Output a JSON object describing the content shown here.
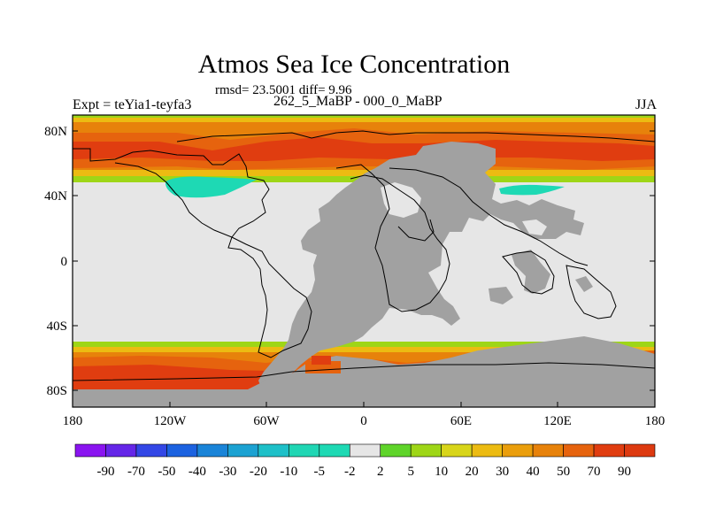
{
  "title": "Atmos Sea Ice Concentration",
  "stats": "rmsd= 23.5001 diff= 9.96",
  "experiment": "Expt = teYia1-teyfa3",
  "period": "262_5_MaBP - 000_0_MaBP",
  "season": "JJA",
  "colors": {
    "land": "#a1a1a1",
    "zero": "#e6e6e6",
    "pos5": "#5fd42a",
    "pos10": "#9ed617",
    "pos20": "#d8d51a",
    "pos30": "#ecbb12",
    "pos40": "#ea9e0c",
    "pos50": "#e7820b",
    "pos70": "#e6630e",
    "pos90": "#e03d10",
    "neg5": "#1ed9b4"
  },
  "chart_data": {
    "type": "heatmap",
    "projection": "cylindrical equidistant",
    "lon_range": [
      -180,
      180
    ],
    "lat_range": [
      -90,
      90
    ],
    "x_ticks": [
      "180",
      "120W",
      "60W",
      "0",
      "60E",
      "120E",
      "180"
    ],
    "y_ticks": [
      "80N",
      "40N",
      "0",
      "40S",
      "80S"
    ],
    "colorbar": {
      "labels": [
        "-90",
        "-70",
        "-50",
        "-40",
        "-30",
        "-20",
        "-10",
        "-5",
        "-2",
        "2",
        "5",
        "10",
        "20",
        "30",
        "40",
        "50",
        "70",
        "90"
      ],
      "colors": [
        "#8a14f0",
        "#6526e8",
        "#3347e6",
        "#1c62e0",
        "#1a84d8",
        "#1ca2d2",
        "#1ec0c8",
        "#20d6b4",
        "#1ed9b4",
        "#e6e6e6",
        "#5fd42a",
        "#9ed617",
        "#d8d51a",
        "#ecbb12",
        "#ea9e0c",
        "#e7820b",
        "#e6630e",
        "#e03d10",
        "#dd3a10"
      ]
    },
    "features": [
      {
        "name": "Arctic ice band",
        "lat_range": [
          50,
          85
        ],
        "value": 70
      },
      {
        "name": "Southern Ocean ice band",
        "lat_range": [
          -85,
          -55
        ],
        "value": 70
      },
      {
        "name": "North Pacific anomaly",
        "lat_range": [
          45,
          52
        ],
        "value": -5
      },
      {
        "name": "North Pacific (east) anomaly",
        "lat_range": [
          43,
          47
        ],
        "value": -5
      }
    ]
  }
}
